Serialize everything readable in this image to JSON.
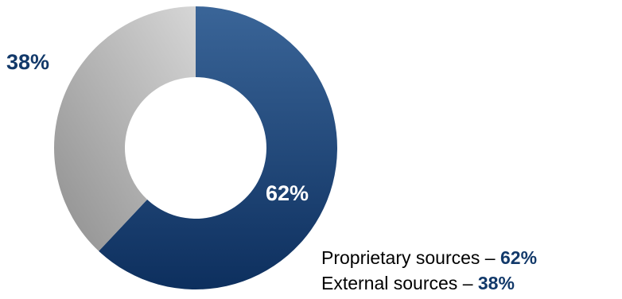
{
  "colors": {
    "proprietary_top": "#3a6598",
    "proprietary_bottom": "#0d2f5e",
    "external_light": "#d6d6d6",
    "external_dark": "#8f8f8f",
    "outside_label": "#12396a",
    "inside_label": "#ffffff"
  },
  "chart_data": {
    "type": "pie",
    "style": "donut",
    "title": "",
    "slices": [
      {
        "name": "Proprietary sources",
        "value": 62,
        "label": "62%",
        "color": "#1b4478"
      },
      {
        "name": "External sources",
        "value": 38,
        "label": "38%",
        "color": "#b5b5b5"
      }
    ],
    "legend_placement": "bottom-right"
  },
  "legend": {
    "items": [
      {
        "text": "Proprietary sources – ",
        "value": "62%"
      },
      {
        "text": "External sources – ",
        "value": "38%"
      }
    ]
  }
}
